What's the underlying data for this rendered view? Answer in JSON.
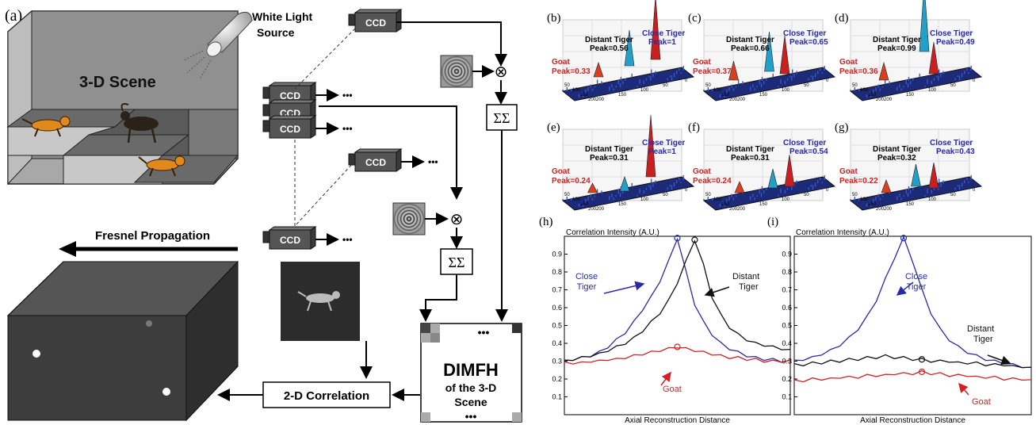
{
  "panel_a": {
    "label": "(a)",
    "light_label": [
      "White Light",
      "Source"
    ],
    "scene_label": "3-D Scene",
    "ccd_label": "CCD",
    "ellipsis": "•••",
    "fresnel_label": "Fresnel Propagation",
    "sum_label": "ΣΣ",
    "multiply": "⊗",
    "dimfh_title": "DIMFH",
    "dimfh_sub": [
      "of the 3-D",
      "Scene"
    ],
    "correlation_label": "2-D Correlation"
  },
  "surfaces": [
    {
      "label": "(b)",
      "distant": [
        "Distant Tiger",
        "Peak=0.56"
      ],
      "close": [
        "Close Tiger",
        "Peak=1"
      ],
      "goat": [
        "Goat",
        "Peak=0.33"
      ],
      "ticks_x": [
        "200",
        "150",
        "100",
        "50",
        "0"
      ],
      "ticks_y": [
        "50",
        "100",
        "150",
        "200"
      ]
    },
    {
      "label": "(c)",
      "distant": [
        "Distant Tiger",
        "Peak=0.66"
      ],
      "close": [
        "Close Tiger",
        "Peak=0.65"
      ],
      "goat": [
        "Goat",
        "Peak=0.37"
      ],
      "ticks_x": [
        "200",
        "150",
        "100",
        "50",
        "0"
      ],
      "ticks_y": [
        "50",
        "100",
        "150",
        "200"
      ]
    },
    {
      "label": "(d)",
      "distant": [
        "Distant Tiger",
        "Peak=0.99"
      ],
      "close": [
        "Close Tiger",
        "Peak=0.49"
      ],
      "goat": [
        "Goat",
        "Peak=0.36"
      ],
      "ticks_x": [
        "200",
        "150",
        "100",
        "50",
        "0"
      ],
      "ticks_y": [
        "50",
        "100",
        "150",
        "200"
      ]
    },
    {
      "label": "(e)",
      "distant": [
        "Distant Tiger",
        "Peak=0.31"
      ],
      "close": [
        "Close Tiger",
        "Peak=1"
      ],
      "goat": [
        "Goat",
        "Peak=0.24"
      ],
      "ticks_x": [
        "200",
        "150",
        "100",
        "50",
        "0"
      ],
      "ticks_y": [
        "50",
        "100",
        "150",
        "200"
      ]
    },
    {
      "label": "(f)",
      "distant": [
        "Distant Tiger",
        "Peak=0.31"
      ],
      "close": [
        "Close Tiger",
        "Peak=0.54"
      ],
      "goat": [
        "Goat",
        "Peak=0.24"
      ],
      "ticks_x": [
        "200",
        "150",
        "100",
        "50",
        "0"
      ],
      "ticks_y": [
        "50",
        "100",
        "150",
        "200"
      ]
    },
    {
      "label": "(g)",
      "distant": [
        "Distant Tiger",
        "Peak=0.32"
      ],
      "close": [
        "Close Tiger",
        "Peak=0.43"
      ],
      "goat": [
        "Goat",
        "Peak=0.22"
      ],
      "ticks_x": [
        "200",
        "150",
        "100",
        "50",
        "0"
      ],
      "ticks_y": [
        "50",
        "100",
        "150",
        "200"
      ]
    }
  ],
  "chart_data": [
    {
      "type": "line",
      "panel": "(h)",
      "ylabel": "Correlation Intensity (A.U.)",
      "xlabel": "Axial Reconstruction Distance",
      "ylim": [
        0,
        1
      ],
      "yticks": [
        "0.1",
        "0.2",
        "0.3",
        "0.4",
        "0.5",
        "0.6",
        "0.7",
        "0.8",
        "0.9"
      ],
      "series": [
        {
          "name": "Close Tiger",
          "label": [
            "Close",
            "Tiger"
          ],
          "color": "#2a2aa8",
          "values": [
            0.3,
            0.31,
            0.32,
            0.33,
            0.35,
            0.38,
            0.42,
            0.46,
            0.52,
            0.59,
            0.66,
            0.75,
            0.86,
            0.99,
            0.8,
            0.62,
            0.52,
            0.45,
            0.4,
            0.37,
            0.35,
            0.33,
            0.32,
            0.31,
            0.31,
            0.3,
            0.3
          ]
        },
        {
          "name": "Distant Tiger",
          "label": [
            "Distant",
            "Tiger"
          ],
          "color": "#111111",
          "values": [
            0.3,
            0.31,
            0.32,
            0.33,
            0.34,
            0.36,
            0.38,
            0.4,
            0.43,
            0.47,
            0.52,
            0.57,
            0.64,
            0.74,
            0.86,
            0.98,
            0.84,
            0.66,
            0.56,
            0.49,
            0.45,
            0.42,
            0.4,
            0.39,
            0.38,
            0.37,
            0.36
          ]
        },
        {
          "name": "Goat",
          "label": [
            "Goat"
          ],
          "color": "#d42020",
          "values": [
            0.29,
            0.29,
            0.29,
            0.3,
            0.3,
            0.31,
            0.31,
            0.32,
            0.33,
            0.34,
            0.35,
            0.36,
            0.37,
            0.38,
            0.37,
            0.36,
            0.35,
            0.34,
            0.33,
            0.32,
            0.32,
            0.31,
            0.31,
            0.3,
            0.3,
            0.3,
            0.3
          ]
        }
      ],
      "peaks": [
        {
          "series": 0,
          "index": 13
        },
        {
          "series": 1,
          "index": 15
        },
        {
          "series": 2,
          "index": 13
        }
      ]
    },
    {
      "type": "line",
      "panel": "(i)",
      "ylabel": "Correlation Intensity (A.U.)",
      "xlabel": "Axial Reconstruction Distance",
      "ylim": [
        0,
        1
      ],
      "yticks": [
        "0.1",
        "0.2",
        "0.3",
        "0.4",
        "0.5",
        "0.6",
        "0.7",
        "0.8",
        "0.9"
      ],
      "series": [
        {
          "name": "Close Tiger",
          "label": [
            "Close",
            "Tiger"
          ],
          "color": "#2a2aa8",
          "values": [
            0.3,
            0.31,
            0.32,
            0.34,
            0.36,
            0.39,
            0.43,
            0.48,
            0.55,
            0.64,
            0.76,
            0.88,
            0.99,
            0.86,
            0.7,
            0.57,
            0.48,
            0.42,
            0.38,
            0.35,
            0.33,
            0.31,
            0.3,
            0.29,
            0.28,
            0.27,
            0.26
          ]
        },
        {
          "name": "Distant Tiger",
          "label": [
            "Distant",
            "Tiger"
          ],
          "color": "#111111",
          "values": [
            0.28,
            0.28,
            0.29,
            0.29,
            0.3,
            0.3,
            0.31,
            0.31,
            0.32,
            0.32,
            0.33,
            0.32,
            0.32,
            0.31,
            0.31,
            0.3,
            0.3,
            0.3,
            0.29,
            0.29,
            0.29,
            0.28,
            0.28,
            0.28,
            0.27,
            0.27,
            0.26
          ]
        },
        {
          "name": "Goat",
          "label": [
            "Goat"
          ],
          "color": "#d42020",
          "values": [
            0.19,
            0.19,
            0.2,
            0.2,
            0.2,
            0.21,
            0.21,
            0.21,
            0.22,
            0.22,
            0.22,
            0.23,
            0.23,
            0.23,
            0.24,
            0.23,
            0.23,
            0.22,
            0.22,
            0.22,
            0.21,
            0.21,
            0.21,
            0.2,
            0.2,
            0.2,
            0.19
          ]
        }
      ],
      "peaks": [
        {
          "series": 0,
          "index": 12
        },
        {
          "series": 1,
          "index": 14
        },
        {
          "series": 2,
          "index": 14
        }
      ]
    }
  ]
}
